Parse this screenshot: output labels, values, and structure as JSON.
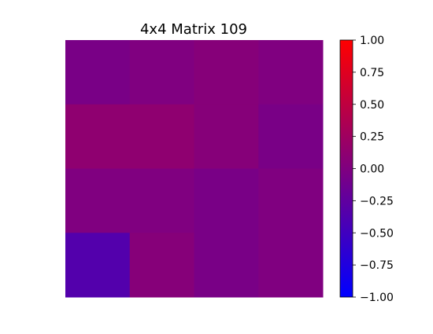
{
  "chart_data": {
    "type": "heatmap",
    "title": "4x4 Matrix 109",
    "rows": 4,
    "cols": 4,
    "values": [
      [
        -0.05,
        0.0,
        0.05,
        0.0
      ],
      [
        0.12,
        0.12,
        0.05,
        -0.05
      ],
      [
        0.0,
        0.0,
        -0.05,
        0.0
      ],
      [
        -0.35,
        0.05,
        -0.05,
        0.0
      ]
    ],
    "colorbar": {
      "min": -1.0,
      "max": 1.0,
      "ticks": [
        -1.0,
        -0.75,
        -0.5,
        -0.25,
        0.0,
        0.25,
        0.5,
        0.75,
        1.0
      ],
      "tick_labels": [
        "−1.00",
        "−0.75",
        "−0.50",
        "−0.25",
        "0.00",
        "0.25",
        "0.50",
        "0.75",
        "1.00"
      ],
      "colormap": [
        "#0000ff",
        "#ff0000"
      ]
    },
    "axes_visible": false,
    "grid": false
  }
}
